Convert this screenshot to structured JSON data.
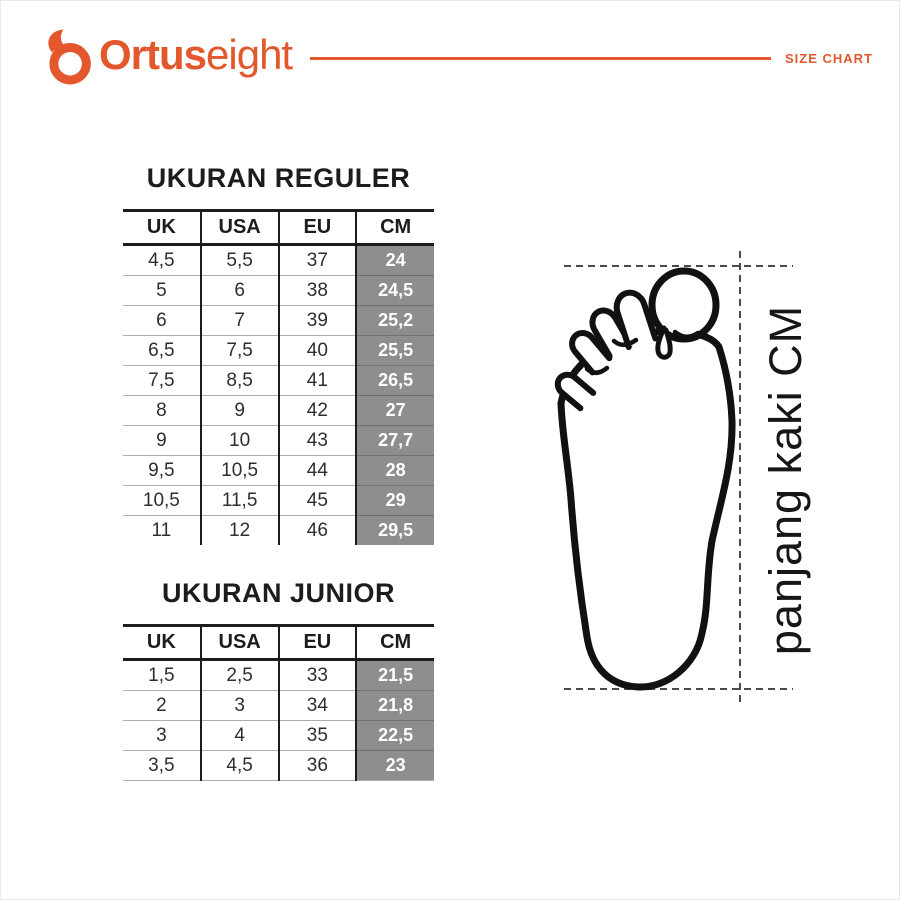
{
  "brand": {
    "name_bold": "Ortus",
    "name_light": "eight",
    "page_label": "SIZE CHART"
  },
  "regular_table": {
    "title": "UKURAN REGULER",
    "headers": [
      "UK",
      "USA",
      "EU",
      "CM"
    ],
    "rows": [
      [
        "4,5",
        "5,5",
        "37",
        "24"
      ],
      [
        "5",
        "6",
        "38",
        "24,5"
      ],
      [
        "6",
        "7",
        "39",
        "25,2"
      ],
      [
        "6,5",
        "7,5",
        "40",
        "25,5"
      ],
      [
        "7,5",
        "8,5",
        "41",
        "26,5"
      ],
      [
        "8",
        "9",
        "42",
        "27"
      ],
      [
        "9",
        "10",
        "43",
        "27,7"
      ],
      [
        "9,5",
        "10,5",
        "44",
        "28"
      ],
      [
        "10,5",
        "11,5",
        "45",
        "29"
      ],
      [
        "11",
        "12",
        "46",
        "29,5"
      ]
    ]
  },
  "junior_table": {
    "title": "UKURAN JUNIOR",
    "headers": [
      "UK",
      "USA",
      "EU",
      "CM"
    ],
    "rows": [
      [
        "1,5",
        "2,5",
        "33",
        "21,5"
      ],
      [
        "2",
        "3",
        "34",
        "21,8"
      ],
      [
        "3",
        "4",
        "35",
        "22,5"
      ],
      [
        "3,5",
        "4,5",
        "36",
        "23"
      ]
    ]
  },
  "foot_diagram": {
    "label": "panjang kaki CM"
  },
  "colors": {
    "accent": "#E2572B",
    "ink": "#1C1C1C",
    "cm_cell_bg": "#8E8E8E",
    "cm_cell_text": "#FFFFFF"
  }
}
